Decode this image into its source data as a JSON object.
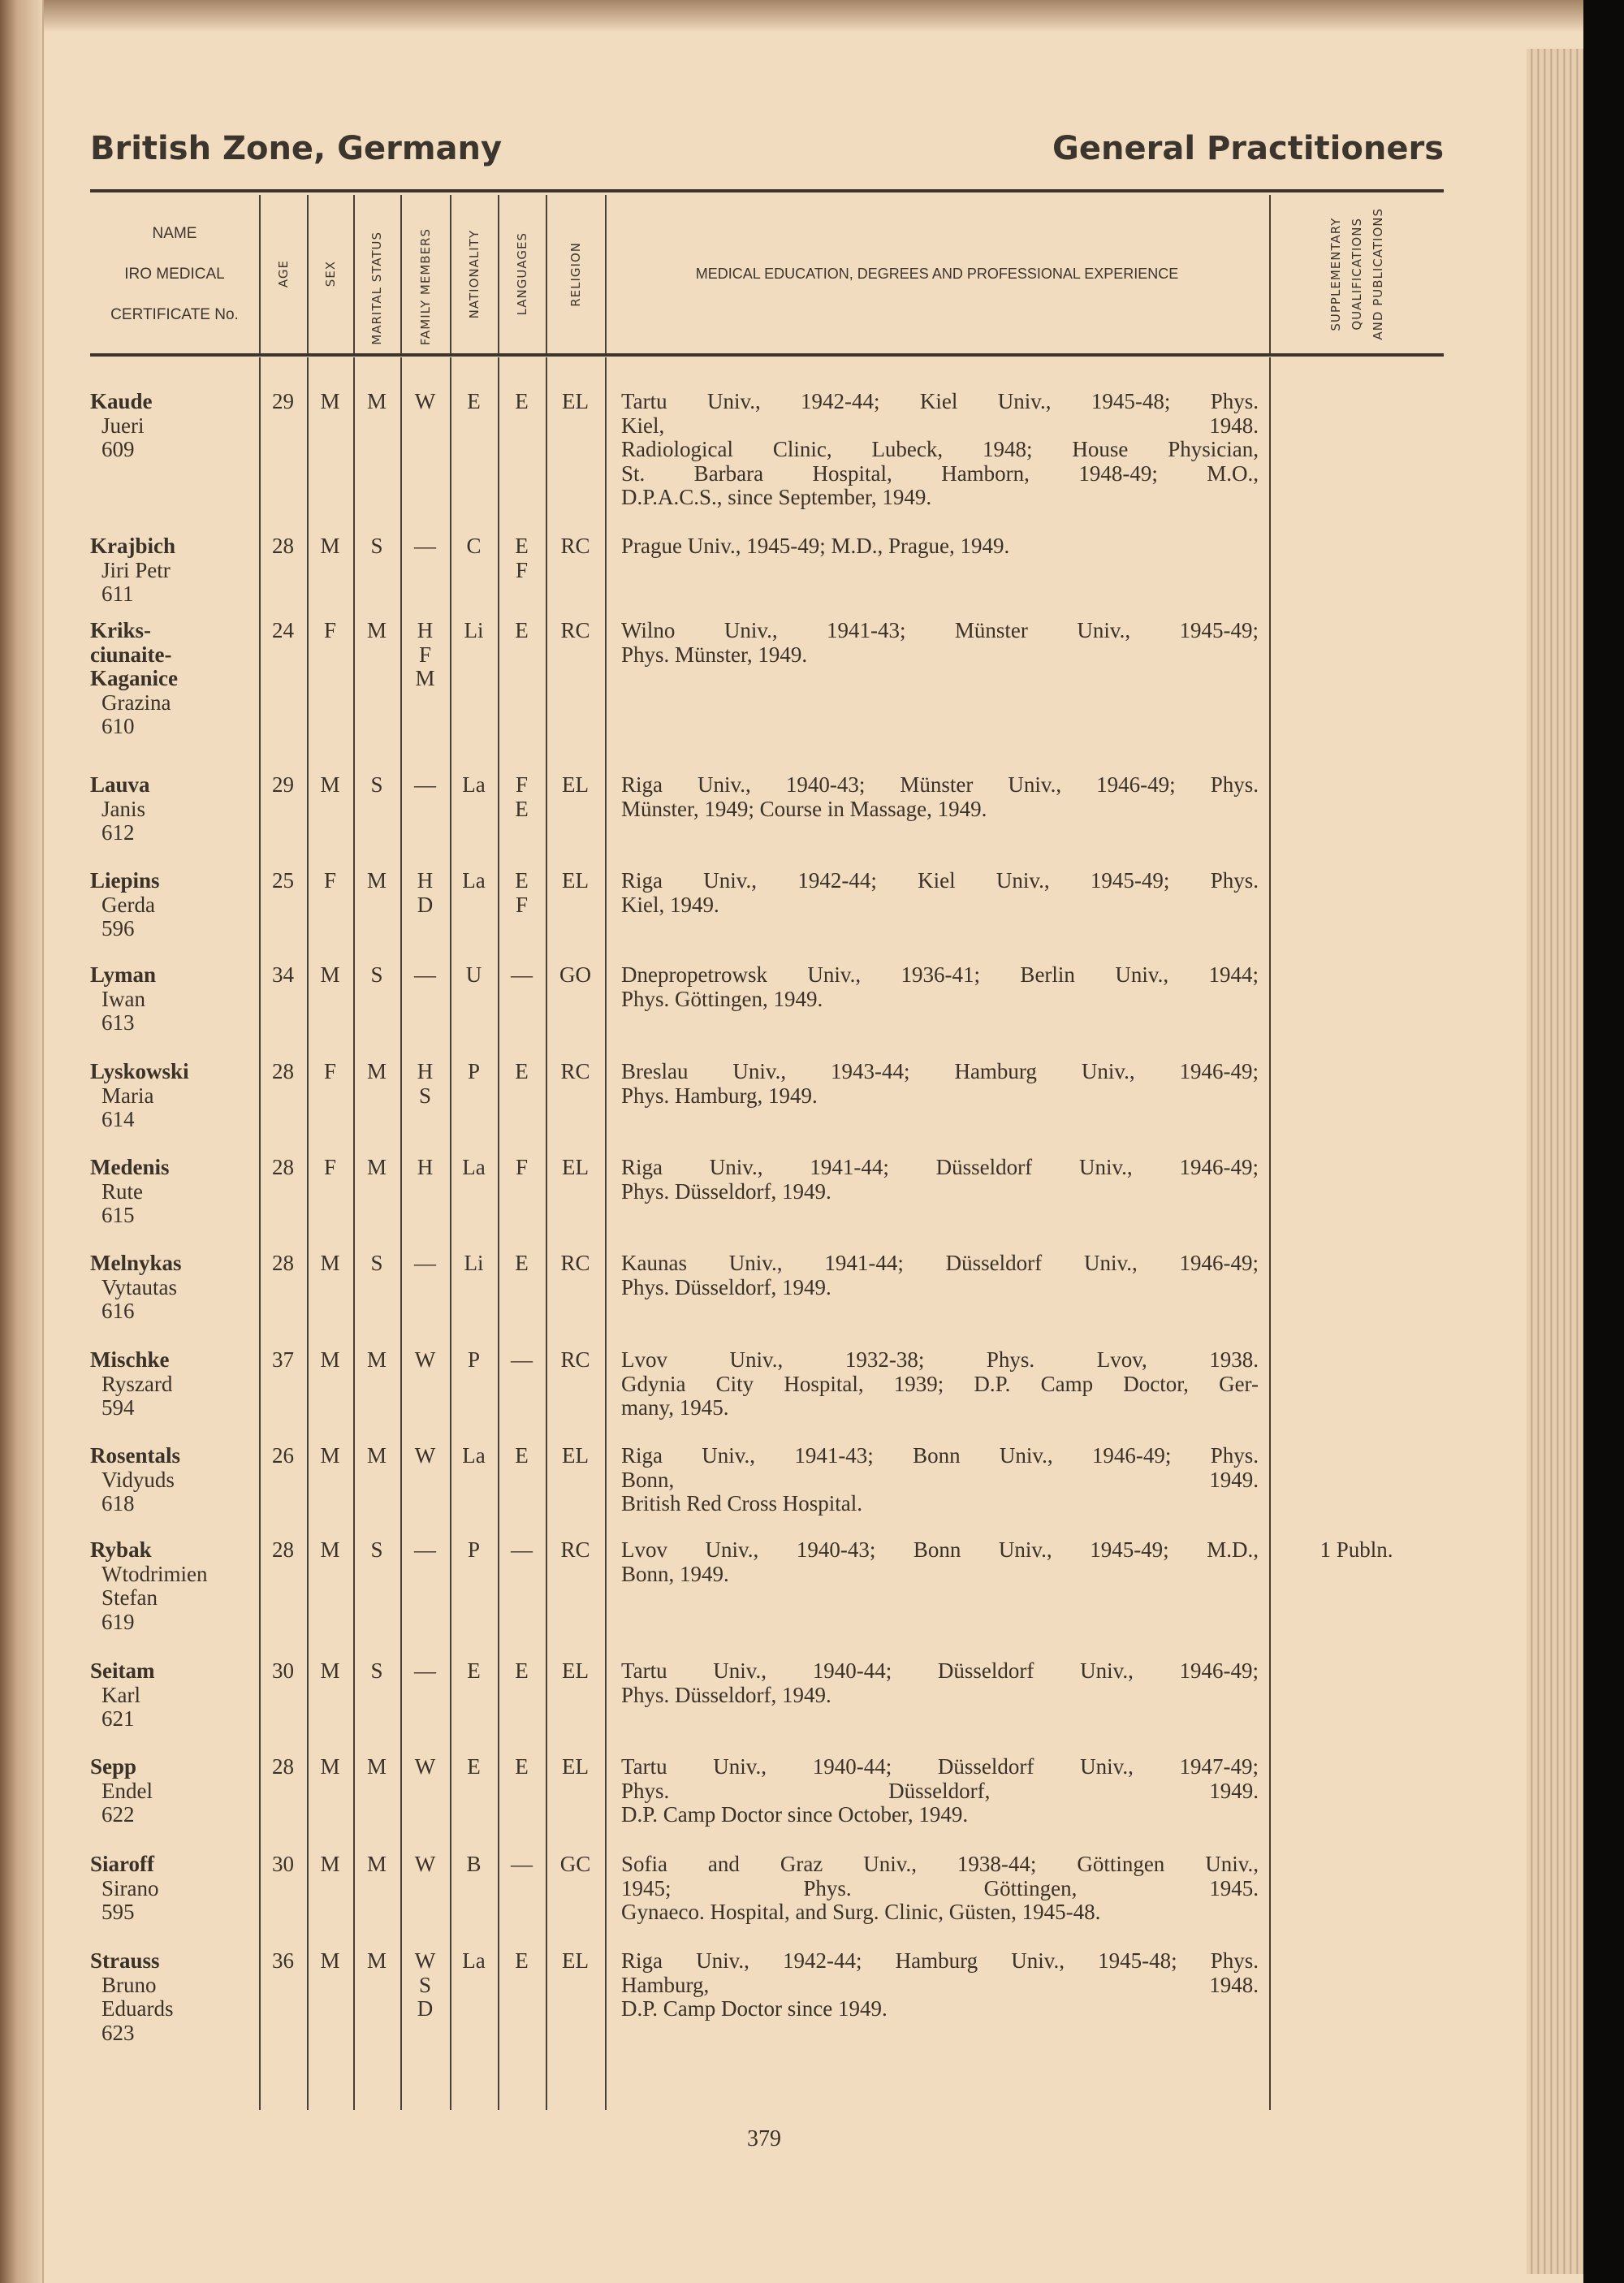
{
  "header": {
    "left": "British Zone, Germany",
    "right": "General Practitioners"
  },
  "columns": {
    "name": [
      "NAME",
      "IRO MEDICAL",
      "CERTIFICATE No."
    ],
    "age": "AGE",
    "sex": "SEX",
    "marital": "MARITAL STATUS",
    "family": "FAMILY MEMBERS",
    "nationality": "NATIONALITY",
    "languages": "LANGUAGES",
    "religion": "RELIGION",
    "education": "MEDICAL EDUCATION, DEGREES AND PROFESSIONAL EXPERIENCE",
    "supplementary": [
      "SUPPLEMENTARY",
      "QUALIFICATIONS",
      "AND PUBLICATIONS"
    ]
  },
  "rows": [
    {
      "surname": [
        "Kaude"
      ],
      "given": [
        "Jueri"
      ],
      "cert": "609",
      "age": "29",
      "sex": "M",
      "marital": "M",
      "family": [
        "W"
      ],
      "nationality": "E",
      "languages": [
        "E"
      ],
      "religion": "EL",
      "education": [
        "Tartu Univ., 1942-44; Kiel Univ., 1945-48; Phys.",
        "Kiel, 1948.",
        "Radiological Clinic, Lubeck, 1948; House Physician,",
        "St. Barbara Hospital, Hamborn, 1948-49; M.O.,",
        "D.P.A.C.S., since September, 1949."
      ],
      "supplementary": ""
    },
    {
      "surname": [
        "Krajbich"
      ],
      "given": [
        "Jiri Petr"
      ],
      "cert": "611",
      "age": "28",
      "sex": "M",
      "marital": "S",
      "family": [
        "—"
      ],
      "nationality": "C",
      "languages": [
        "E",
        "F"
      ],
      "religion": "RC",
      "education": [
        "Prague Univ., 1945-49; M.D., Prague, 1949."
      ],
      "supplementary": ""
    },
    {
      "surname": [
        "Kriks-",
        "ciunaite-",
        "Kaganice"
      ],
      "given": [
        "Grazina"
      ],
      "cert": "610",
      "age": "24",
      "sex": "F",
      "marital": "M",
      "family": [
        "H",
        "F",
        "M"
      ],
      "nationality": "Li",
      "languages": [
        "E"
      ],
      "religion": "RC",
      "education": [
        "Wilno Univ., 1941-43; Münster Univ., 1945-49;",
        "Phys. Münster, 1949."
      ],
      "supplementary": ""
    },
    {
      "surname": [
        "Lauva"
      ],
      "given": [
        "Janis"
      ],
      "cert": "612",
      "age": "29",
      "sex": "M",
      "marital": "S",
      "family": [
        "—"
      ],
      "nationality": "La",
      "languages": [
        "F",
        "E"
      ],
      "religion": "EL",
      "education": [
        "Riga Univ., 1940-43; Münster Univ., 1946-49; Phys.",
        "Münster, 1949; Course in Massage, 1949."
      ],
      "supplementary": ""
    },
    {
      "surname": [
        "Liepins"
      ],
      "given": [
        "Gerda"
      ],
      "cert": "596",
      "age": "25",
      "sex": "F",
      "marital": "M",
      "family": [
        "H",
        "D"
      ],
      "nationality": "La",
      "languages": [
        "E",
        "F"
      ],
      "religion": "EL",
      "education": [
        "Riga Univ., 1942-44; Kiel Univ., 1945-49; Phys.",
        "Kiel, 1949."
      ],
      "supplementary": ""
    },
    {
      "surname": [
        "Lyman"
      ],
      "given": [
        "Iwan"
      ],
      "cert": "613",
      "age": "34",
      "sex": "M",
      "marital": "S",
      "family": [
        "—"
      ],
      "nationality": "U",
      "languages": [
        "—"
      ],
      "religion": "GO",
      "education": [
        "Dnepropetrowsk Univ., 1936-41; Berlin Univ., 1944;",
        "Phys. Göttingen, 1949."
      ],
      "supplementary": ""
    },
    {
      "surname": [
        "Lyskowski"
      ],
      "given": [
        "Maria"
      ],
      "cert": "614",
      "age": "28",
      "sex": "F",
      "marital": "M",
      "family": [
        "H",
        "S"
      ],
      "nationality": "P",
      "languages": [
        "E"
      ],
      "religion": "RC",
      "education": [
        "Breslau Univ., 1943-44; Hamburg Univ., 1946-49;",
        "Phys. Hamburg, 1949."
      ],
      "supplementary": ""
    },
    {
      "surname": [
        "Medenis"
      ],
      "given": [
        "Rute"
      ],
      "cert": "615",
      "age": "28",
      "sex": "F",
      "marital": "M",
      "family": [
        "H"
      ],
      "nationality": "La",
      "languages": [
        "F"
      ],
      "religion": "EL",
      "education": [
        "Riga Univ., 1941-44; Düsseldorf Univ., 1946-49;",
        "Phys. Düsseldorf, 1949."
      ],
      "supplementary": ""
    },
    {
      "surname": [
        "Melnykas"
      ],
      "given": [
        "Vytautas"
      ],
      "cert": "616",
      "age": "28",
      "sex": "M",
      "marital": "S",
      "family": [
        "—"
      ],
      "nationality": "Li",
      "languages": [
        "E"
      ],
      "religion": "RC",
      "education": [
        "Kaunas Univ., 1941-44; Düsseldorf Univ., 1946-49;",
        "Phys. Düsseldorf, 1949."
      ],
      "supplementary": ""
    },
    {
      "surname": [
        "Mischke"
      ],
      "given": [
        "Ryszard"
      ],
      "cert": "594",
      "age": "37",
      "sex": "M",
      "marital": "M",
      "family": [
        "W"
      ],
      "nationality": "P",
      "languages": [
        "—"
      ],
      "religion": "RC",
      "education": [
        "Lvov Univ., 1932-38; Phys. Lvov, 1938.",
        "Gdynia City Hospital, 1939; D.P. Camp Doctor, Ger-",
        "many, 1945."
      ],
      "supplementary": ""
    },
    {
      "surname": [
        "Rosentals"
      ],
      "given": [
        "Vidyuds"
      ],
      "cert": "618",
      "age": "26",
      "sex": "M",
      "marital": "M",
      "family": [
        "W"
      ],
      "nationality": "La",
      "languages": [
        "E"
      ],
      "religion": "EL",
      "education": [
        "Riga Univ., 1941-43; Bonn Univ., 1946-49; Phys.",
        "Bonn, 1949.",
        "British Red Cross Hospital."
      ],
      "supplementary": ""
    },
    {
      "surname": [
        "Rybak"
      ],
      "given": [
        "Wtodrimien",
        "Stefan"
      ],
      "cert": "619",
      "age": "28",
      "sex": "M",
      "marital": "S",
      "family": [
        "—"
      ],
      "nationality": "P",
      "languages": [
        "—"
      ],
      "religion": "RC",
      "education": [
        "Lvov Univ., 1940-43; Bonn Univ., 1945-49; M.D.,",
        "Bonn, 1949."
      ],
      "supplementary": "1 Publn."
    },
    {
      "surname": [
        "Seitam"
      ],
      "given": [
        "Karl"
      ],
      "cert": "621",
      "age": "30",
      "sex": "M",
      "marital": "S",
      "family": [
        "—"
      ],
      "nationality": "E",
      "languages": [
        "E"
      ],
      "religion": "EL",
      "education": [
        "Tartu Univ., 1940-44; Düsseldorf Univ., 1946-49;",
        "Phys. Düsseldorf, 1949."
      ],
      "supplementary": ""
    },
    {
      "surname": [
        "Sepp"
      ],
      "given": [
        "Endel"
      ],
      "cert": "622",
      "age": "28",
      "sex": "M",
      "marital": "M",
      "family": [
        "W"
      ],
      "nationality": "E",
      "languages": [
        "E"
      ],
      "religion": "EL",
      "education": [
        "Tartu Univ., 1940-44; Düsseldorf Univ., 1947-49;",
        "Phys. Düsseldorf, 1949.",
        "D.P. Camp Doctor since October, 1949."
      ],
      "supplementary": ""
    },
    {
      "surname": [
        "Siaroff"
      ],
      "given": [
        "Sirano"
      ],
      "cert": "595",
      "age": "30",
      "sex": "M",
      "marital": "M",
      "family": [
        "W"
      ],
      "nationality": "B",
      "languages": [
        "—"
      ],
      "religion": "GC",
      "education": [
        "Sofia and Graz Univ., 1938-44; Göttingen Univ.,",
        "1945; Phys. Göttingen, 1945.",
        "Gynaeco. Hospital, and Surg. Clinic, Güsten, 1945-48."
      ],
      "supplementary": ""
    },
    {
      "surname": [
        "Strauss"
      ],
      "given": [
        "Bruno",
        "Eduards"
      ],
      "cert": "623",
      "age": "36",
      "sex": "M",
      "marital": "M",
      "family": [
        "W",
        "S",
        "D"
      ],
      "nationality": "La",
      "languages": [
        "E"
      ],
      "religion": "EL",
      "education": [
        "Riga Univ., 1942-44; Hamburg Univ., 1945-48; Phys.",
        "Hamburg, 1948.",
        "D.P. Camp Doctor since 1949."
      ],
      "supplementary": ""
    }
  ],
  "page_number": "379"
}
